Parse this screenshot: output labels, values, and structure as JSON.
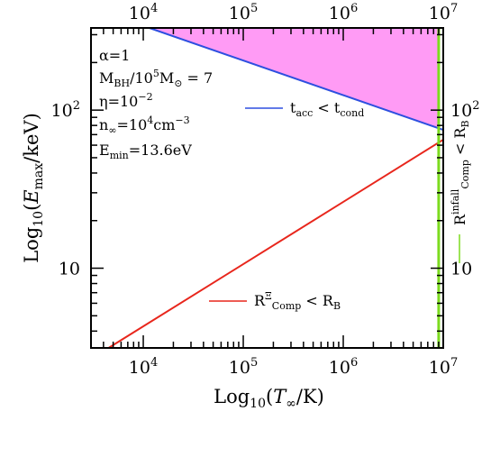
{
  "chart_data": {
    "type": "line",
    "xscale": "log",
    "yscale": "log",
    "xlim": [
      3000,
      10000000
    ],
    "ylim": [
      3.13,
      331
    ],
    "xlabel": {
      "pre": "Log",
      "sub": "10",
      "open": "(",
      "var": "T",
      "varsub": "∞",
      "post": "/K)"
    },
    "ylabel": {
      "pre": "Log",
      "sub": "10",
      "open": "(",
      "var": "E",
      "varsub": "max",
      "post": "/keV)"
    },
    "x_ticks": [
      {
        "value": 10000,
        "base": "10",
        "exp": "4"
      },
      {
        "value": 100000,
        "base": "10",
        "exp": "5"
      },
      {
        "value": 1000000,
        "base": "10",
        "exp": "6"
      },
      {
        "value": 10000000,
        "base": "10",
        "exp": "7"
      }
    ],
    "y_ticks": [
      {
        "value": 10,
        "label": "10",
        "base": "10",
        "exp": ""
      },
      {
        "value": 100,
        "label": "10",
        "base": "10",
        "exp": "2"
      }
    ],
    "series": [
      {
        "key": "t_acc",
        "color": "#2d4fe0",
        "x": [
          11500,
          10000000
        ],
        "y": [
          331,
          75
        ]
      },
      {
        "key": "R_comp",
        "color": "#e8261c",
        "x": [
          4500,
          10000000
        ],
        "y": [
          3.13,
          65
        ]
      }
    ],
    "vertical_line": {
      "key": "R_infall",
      "color": "#7cdb1f",
      "x": 9000000
    },
    "shaded_region": {
      "color": "#ff9bf5",
      "between": [
        "t_acc",
        "top"
      ]
    },
    "annotations": [
      {
        "key": "alpha",
        "text": "α=1"
      },
      {
        "key": "mbh",
        "parts": [
          [
            "M",
            ""
          ],
          [
            "BH",
            "sub"
          ],
          [
            "/10",
            ""
          ],
          [
            "5",
            "sup"
          ],
          [
            "M",
            ""
          ],
          [
            "⊙",
            "sub"
          ],
          [
            " = 7",
            ""
          ]
        ]
      },
      {
        "key": "eta",
        "parts": [
          [
            "η=10",
            ""
          ],
          [
            "−2",
            "sup"
          ]
        ]
      },
      {
        "key": "ninf",
        "parts": [
          [
            "n",
            ""
          ],
          [
            "∞",
            "sub"
          ],
          [
            "=10",
            ""
          ],
          [
            "4",
            "sup"
          ],
          [
            "cm",
            ""
          ],
          [
            "−3",
            "sup"
          ]
        ]
      },
      {
        "key": "emin",
        "parts": [
          [
            "E",
            ""
          ],
          [
            "min",
            "sub"
          ],
          [
            "=13.6eV",
            ""
          ]
        ]
      }
    ],
    "legend": [
      {
        "key": "t_acc",
        "color": "#2d4fe0",
        "parts": [
          [
            "t",
            ""
          ],
          [
            "acc",
            "sub"
          ],
          [
            " < t",
            ""
          ],
          [
            "cond",
            "sub"
          ]
        ]
      },
      {
        "key": "R_comp",
        "color": "#e8261c",
        "parts": [
          [
            "R",
            ""
          ],
          [
            "Ξ",
            "sup"
          ],
          [
            "Comp",
            "sub"
          ],
          [
            " < R",
            ""
          ],
          [
            "B",
            "sub"
          ]
        ]
      },
      {
        "key": "R_infall",
        "color": "#7cdb1f",
        "parts": [
          [
            "R",
            ""
          ],
          [
            "infall",
            "sup"
          ],
          [
            "Comp",
            "sub"
          ],
          [
            " < R",
            ""
          ],
          [
            "B",
            "sub"
          ]
        ]
      }
    ]
  }
}
